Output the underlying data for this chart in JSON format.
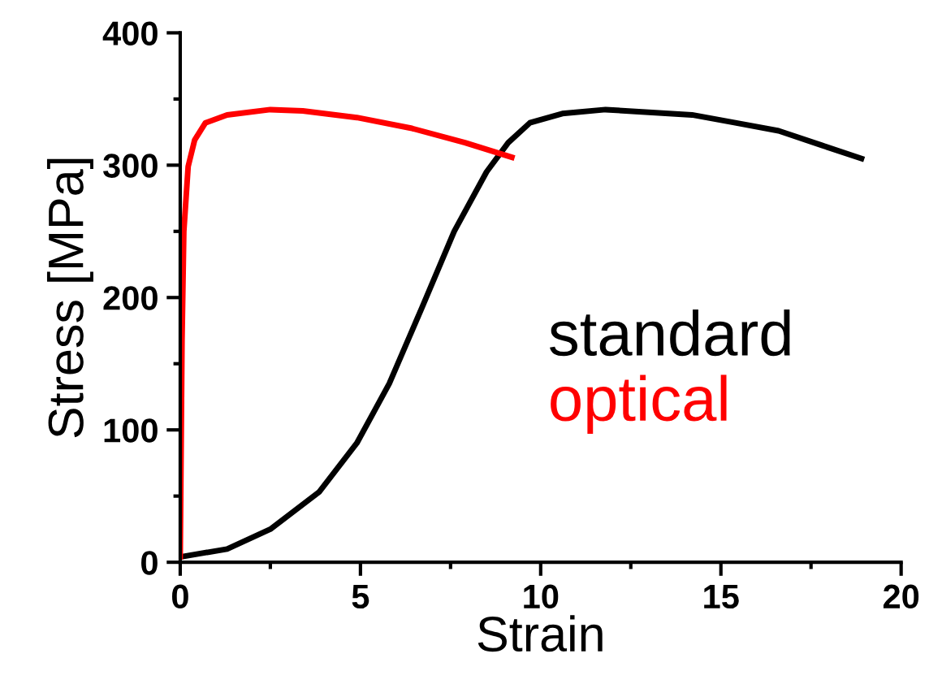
{
  "chart_data": {
    "type": "line",
    "xlabel": "Strain",
    "ylabel": "Stress [MPa]",
    "xlim": [
      0,
      20
    ],
    "xticks": [
      0,
      5,
      10,
      15,
      20
    ],
    "ylim": [
      0,
      400
    ],
    "yticks": [
      0,
      100,
      200,
      300,
      400
    ],
    "grid": false,
    "legend": "right",
    "marker": "none",
    "line_style": "solid",
    "series": [
      {
        "name": "standard",
        "color": "#000000",
        "x": [
          0,
          1.3,
          2.5,
          3.85,
          4.9,
          5.8,
          6.7,
          7.6,
          8.5,
          9.1,
          9.7,
          10.6,
          11.8,
          13.0,
          14.2,
          15.4,
          16.6,
          17.8,
          18.9
        ],
        "values": [
          4,
          10,
          25,
          53,
          90,
          135,
          192,
          250,
          295,
          317,
          332,
          339,
          342,
          340,
          338,
          332,
          326,
          315,
          305
        ]
      },
      {
        "name": "optical",
        "color": "#ff0000",
        "x": [
          0,
          0.05,
          0.1,
          0.22,
          0.4,
          0.7,
          1.3,
          2.5,
          3.4,
          4.9,
          6.4,
          7.9,
          9.2
        ],
        "values": [
          4,
          168,
          250,
          299,
          319,
          332,
          338,
          342,
          341,
          336,
          328,
          317,
          306
        ]
      }
    ]
  }
}
